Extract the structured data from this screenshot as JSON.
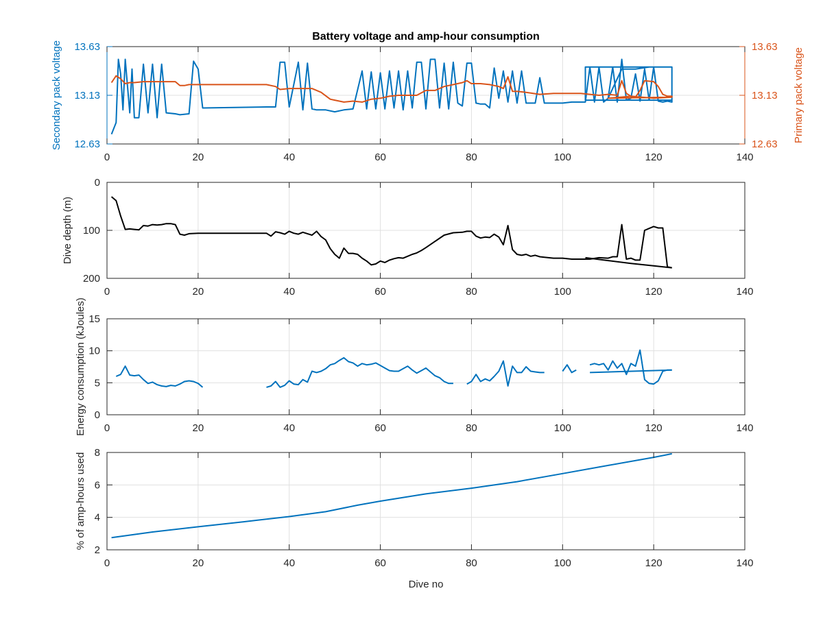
{
  "figure": {
    "title": "Battery voltage and amp-hour consumption",
    "xlabel": "Dive no"
  },
  "colors": {
    "blue": "#0072bd",
    "orange": "#d95319",
    "black": "#000000",
    "grid": "#e0e0e0",
    "axis": "#262626"
  },
  "chart_data": [
    {
      "type": "line",
      "title": "Battery voltage and amp-hour consumption",
      "xlabel": "",
      "ylabel": "Secondary pack voltage",
      "ylabel_right": "Primary pack voltage",
      "xlim": [
        0,
        140
      ],
      "ylim": [
        12.63,
        13.63
      ],
      "ylim_right": [
        12.63,
        13.63
      ],
      "xticks": [
        0,
        20,
        40,
        60,
        80,
        100,
        120,
        140
      ],
      "yticks": [
        "12.63",
        "13.13",
        "13.63"
      ],
      "yticks_right": [
        "12.63",
        "13.13",
        "13.63"
      ],
      "grid": true,
      "series": [
        {
          "axis": "left",
          "color": "blue",
          "x": [
            1,
            2,
            2.5,
            3,
            3.5,
            4,
            5,
            5.5,
            6,
            7,
            8,
            9,
            10,
            11,
            12,
            13,
            15,
            16,
            18,
            19,
            20,
            21,
            35,
            37,
            38,
            39,
            40,
            42,
            43,
            44,
            45,
            46,
            48,
            50,
            52,
            54,
            56,
            57,
            58,
            59,
            60,
            61,
            62,
            63,
            64,
            65,
            66,
            67,
            68,
            69,
            70,
            71,
            72,
            73,
            74,
            75,
            76,
            77,
            78,
            79,
            80,
            81,
            82,
            83,
            84,
            85,
            86,
            87,
            88,
            89,
            90,
            91,
            92,
            93,
            94,
            95,
            96,
            98,
            100,
            102,
            104,
            105,
            106,
            107,
            108,
            109,
            110,
            111,
            112,
            113,
            114,
            115,
            116,
            117,
            118,
            119,
            120,
            121,
            122,
            123,
            124,
            124,
            105,
            105,
            124,
            124,
            111,
            110,
            113,
            116,
            119,
            124
          ],
          "y": [
            12.73,
            12.85,
            13.5,
            13.35,
            12.98,
            13.5,
            12.95,
            13.4,
            12.9,
            12.9,
            13.45,
            12.95,
            13.45,
            12.9,
            13.45,
            12.95,
            12.94,
            12.93,
            12.94,
            13.48,
            13.4,
            13.0,
            13.01,
            13.01,
            13.47,
            13.47,
            13.01,
            13.47,
            12.98,
            13.46,
            12.99,
            12.98,
            12.98,
            12.96,
            12.98,
            12.99,
            13.38,
            12.99,
            13.37,
            12.99,
            13.36,
            12.99,
            13.38,
            13.0,
            13.38,
            12.98,
            13.38,
            13.0,
            13.47,
            13.47,
            12.99,
            13.5,
            13.5,
            13.0,
            13.46,
            12.99,
            13.47,
            13.05,
            13.02,
            13.46,
            13.46,
            13.05,
            13.04,
            13.04,
            13.0,
            13.41,
            13.1,
            13.38,
            13.06,
            13.38,
            13.05,
            13.38,
            13.05,
            13.05,
            13.05,
            13.31,
            13.05,
            13.05,
            13.05,
            13.06,
            13.06,
            13.06,
            13.42,
            13.06,
            13.42,
            13.06,
            13.1,
            13.42,
            13.06,
            13.5,
            13.08,
            13.1,
            13.35,
            13.07,
            13.4,
            13.08,
            13.42,
            13.07,
            13.06,
            13.07,
            13.06,
            13.42,
            13.42,
            13.08,
            13.08,
            13.42,
            13.42,
            13.1,
            13.4,
            13.4,
            13.42,
            13.42
          ]
        },
        {
          "axis": "right",
          "color": "orange",
          "x": [
            1,
            2,
            3,
            4,
            5,
            6,
            8,
            10,
            12,
            14,
            15,
            16,
            17,
            18,
            20,
            25,
            30,
            35,
            37,
            38,
            40,
            45,
            47,
            49,
            50,
            52,
            54,
            56,
            58,
            60,
            62,
            64,
            66,
            68,
            70,
            72,
            74,
            76,
            78,
            79,
            80,
            82,
            84,
            86,
            87,
            88,
            89,
            90,
            92,
            95,
            98,
            100,
            102,
            104,
            106,
            108,
            110,
            112,
            113,
            114,
            115,
            116,
            117,
            118,
            120,
            121,
            122,
            123,
            124,
            124,
            110,
            115,
            120,
            124
          ],
          "y": [
            13.26,
            13.33,
            13.3,
            13.25,
            13.26,
            13.26,
            13.27,
            13.27,
            13.27,
            13.27,
            13.27,
            13.23,
            13.23,
            13.24,
            13.24,
            13.24,
            13.24,
            13.24,
            13.22,
            13.19,
            13.2,
            13.2,
            13.16,
            13.09,
            13.08,
            13.06,
            13.07,
            13.06,
            13.09,
            13.1,
            13.12,
            13.13,
            13.13,
            13.13,
            13.18,
            13.18,
            13.22,
            13.24,
            13.26,
            13.28,
            13.25,
            13.25,
            13.24,
            13.22,
            13.2,
            13.32,
            13.17,
            13.17,
            13.16,
            13.14,
            13.15,
            13.15,
            13.15,
            13.15,
            13.14,
            13.13,
            13.14,
            13.13,
            13.28,
            13.15,
            13.12,
            13.11,
            13.18,
            13.28,
            13.27,
            13.22,
            13.14,
            13.12,
            13.12,
            13.11,
            13.1,
            13.12,
            13.1,
            13.11
          ]
        }
      ]
    },
    {
      "type": "line",
      "title": "",
      "xlabel": "",
      "ylabel": "Dive depth (m)",
      "xlim": [
        0,
        140
      ],
      "ylim": [
        0,
        200
      ],
      "y_reversed": true,
      "xticks": [
        0,
        20,
        40,
        60,
        80,
        100,
        120,
        140
      ],
      "yticks": [
        "0",
        "100",
        "200"
      ],
      "grid": true,
      "series": [
        {
          "color": "black",
          "x": [
            1,
            2,
            3,
            4,
            5,
            6,
            7,
            8,
            9,
            10,
            11,
            12,
            13,
            14,
            15,
            16,
            17,
            18,
            20,
            25,
            30,
            35,
            36,
            37,
            38,
            39,
            40,
            41,
            42,
            43,
            44,
            45,
            46,
            47,
            48,
            49,
            50,
            51,
            52,
            53,
            54,
            55,
            56,
            57,
            58,
            59,
            60,
            61,
            62,
            63,
            64,
            65,
            66,
            67,
            68,
            69,
            70,
            72,
            74,
            76,
            78,
            79,
            80,
            81,
            82,
            83,
            84,
            85,
            86,
            87,
            88,
            89,
            90,
            91,
            92,
            93,
            94,
            95,
            96,
            98,
            100,
            102,
            104,
            106,
            108,
            110,
            111,
            112,
            113,
            114,
            115,
            116,
            117,
            118,
            119,
            120,
            121,
            122,
            123,
            124
          ],
          "y": [
            30,
            38,
            70,
            98,
            97,
            98,
            99,
            90,
            91,
            88,
            89,
            88,
            86,
            86,
            88,
            108,
            110,
            107,
            106,
            106,
            106,
            106,
            112,
            103,
            105,
            108,
            102,
            106,
            108,
            104,
            107,
            110,
            102,
            113,
            120,
            138,
            150,
            158,
            137,
            148,
            148,
            150,
            158,
            164,
            172,
            170,
            164,
            167,
            162,
            159,
            157,
            158,
            154,
            150,
            147,
            142,
            136,
            123,
            110,
            105,
            104,
            102,
            102,
            112,
            116,
            114,
            115,
            108,
            114,
            130,
            90,
            140,
            150,
            152,
            150,
            154,
            152,
            155,
            156,
            158,
            158,
            160,
            160,
            160,
            157,
            158,
            155,
            155,
            88,
            160,
            158,
            162,
            162,
            100,
            96,
            92,
            95,
            95,
            176,
            178
          ]
        },
        {
          "color": "black",
          "x": [
            105,
            110,
            115,
            120,
            124
          ],
          "y": [
            157,
            163,
            169,
            174,
            178
          ]
        }
      ]
    },
    {
      "type": "line",
      "title": "",
      "xlabel": "",
      "ylabel": "Energy consumption (kJoules)",
      "xlim": [
        0,
        140
      ],
      "ylim": [
        0,
        15
      ],
      "xticks": [
        0,
        20,
        40,
        60,
        80,
        100,
        120,
        140
      ],
      "yticks": [
        "0",
        "5",
        "10",
        "15"
      ],
      "grid": true,
      "series": [
        {
          "color": "blue",
          "segments": [
            {
              "x": [
                2,
                3,
                4,
                5,
                6,
                7,
                8,
                9,
                10,
                11,
                12,
                13,
                14,
                15,
                16,
                17,
                18,
                19,
                20,
                21
              ],
              "y": [
                6.0,
                6.3,
                7.6,
                6.2,
                6.1,
                6.2,
                5.5,
                4.9,
                5.1,
                4.7,
                4.5,
                4.4,
                4.6,
                4.5,
                4.8,
                5.2,
                5.3,
                5.2,
                4.9,
                4.3
              ]
            },
            {
              "x": [
                35,
                36,
                37,
                38,
                39,
                40,
                41,
                42,
                43,
                44,
                45,
                46,
                47,
                48,
                49,
                50,
                51,
                52,
                53,
                54,
                55,
                56,
                57,
                58,
                59,
                60,
                61,
                62,
                63,
                64,
                65,
                66,
                67,
                68,
                69,
                70,
                71,
                72,
                73,
                74,
                75,
                76
              ],
              "y": [
                4.3,
                4.5,
                5.2,
                4.3,
                4.6,
                5.3,
                4.8,
                4.7,
                5.5,
                5.1,
                6.8,
                6.6,
                6.8,
                7.2,
                7.8,
                8.0,
                8.5,
                8.9,
                8.3,
                8.1,
                7.6,
                8.0,
                7.8,
                7.9,
                8.1,
                7.7,
                7.3,
                6.9,
                6.8,
                6.8,
                7.2,
                7.6,
                7.0,
                6.5,
                6.9,
                7.3,
                6.7,
                6.1,
                5.8,
                5.2,
                4.9,
                4.9
              ]
            },
            {
              "x": [
                79,
                80,
                81,
                82,
                83,
                84,
                85,
                86,
                87,
                88,
                89,
                90,
                91,
                92,
                93,
                94,
                95,
                96
              ],
              "y": [
                4.8,
                5.2,
                6.3,
                5.2,
                5.6,
                5.3,
                6.0,
                6.8,
                8.4,
                4.5,
                7.6,
                6.6,
                6.6,
                7.5,
                6.8,
                6.7,
                6.6,
                6.6
              ]
            },
            {
              "x": [
                100,
                101,
                102,
                103
              ],
              "y": [
                6.8,
                7.8,
                6.6,
                7.0
              ]
            },
            {
              "x": [
                106,
                107,
                108,
                109,
                110,
                111,
                112,
                113,
                114,
                115,
                116,
                117,
                118,
                119,
                120,
                121,
                122,
                123,
                124
              ],
              "y": [
                7.8,
                8.0,
                7.8,
                8.0,
                7.0,
                8.4,
                7.3,
                8.0,
                6.3,
                8.0,
                7.6,
                10.1,
                5.5,
                4.9,
                4.8,
                5.3,
                6.8,
                7.0,
                7.0
              ]
            },
            {
              "x": [
                106,
                124
              ],
              "y": [
                6.6,
                7.0
              ]
            }
          ]
        }
      ]
    },
    {
      "type": "line",
      "title": "",
      "xlabel": "Dive no",
      "ylabel": "% of amp-hours used",
      "xlim": [
        0,
        140
      ],
      "ylim": [
        2,
        8
      ],
      "xticks": [
        0,
        20,
        40,
        60,
        80,
        100,
        120,
        140
      ],
      "yticks": [
        "2",
        "4",
        "6",
        "8"
      ],
      "grid": true,
      "series": [
        {
          "color": "blue",
          "x": [
            1,
            10,
            20,
            30,
            40,
            48,
            55,
            60,
            70,
            80,
            90,
            100,
            110,
            120,
            124
          ],
          "y": [
            2.75,
            3.1,
            3.42,
            3.73,
            4.05,
            4.35,
            4.75,
            5.0,
            5.45,
            5.8,
            6.2,
            6.7,
            7.2,
            7.7,
            7.92
          ]
        }
      ]
    }
  ]
}
